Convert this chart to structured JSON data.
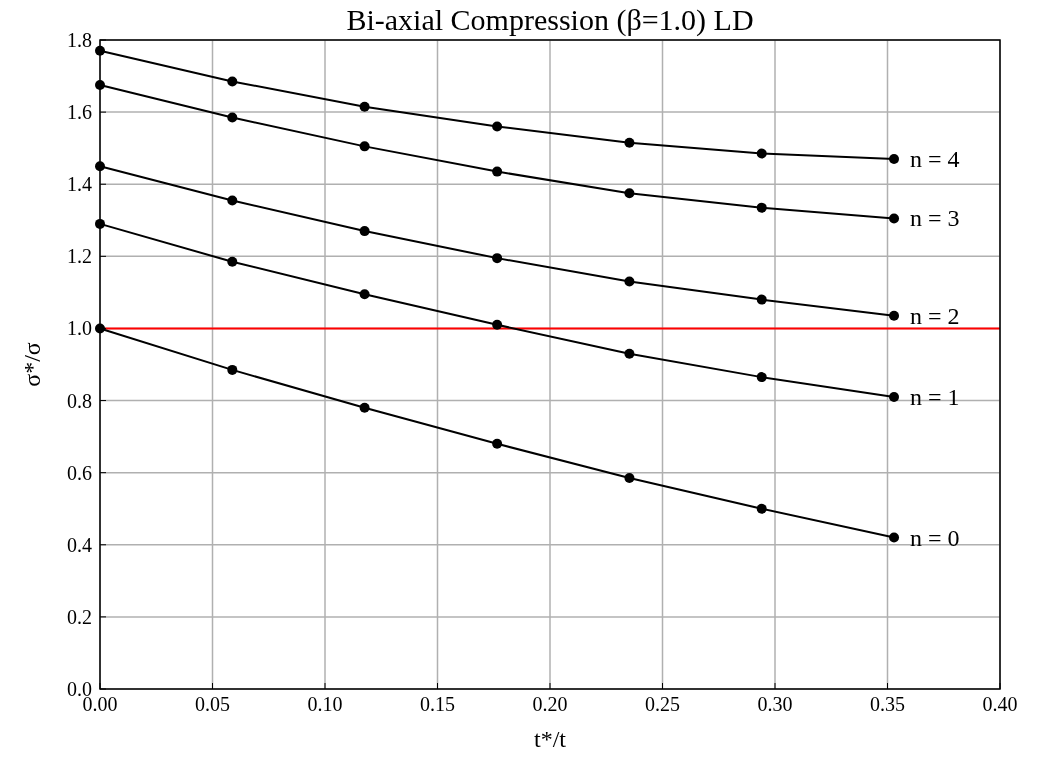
{
  "chart_data": {
    "type": "line",
    "title": "Bi-axial Compression (β=1.0) LD",
    "xlabel": "t*/t",
    "ylabel": "σ*/σ",
    "x": [
      0,
      0.0588,
      0.1176,
      0.1765,
      0.2353,
      0.2941,
      0.3529
    ],
    "series": [
      {
        "name": "n = 4",
        "color": "#000000",
        "values": [
          1.77,
          1.685,
          1.615,
          1.56,
          1.515,
          1.485,
          1.47
        ]
      },
      {
        "name": "n = 3",
        "color": "#000000",
        "values": [
          1.675,
          1.585,
          1.505,
          1.435,
          1.375,
          1.335,
          1.305
        ]
      },
      {
        "name": "n = 2",
        "color": "#000000",
        "values": [
          1.45,
          1.355,
          1.27,
          1.195,
          1.13,
          1.08,
          1.035
        ]
      },
      {
        "name": "n = 1",
        "color": "#000000",
        "values": [
          1.29,
          1.185,
          1.095,
          1.01,
          0.93,
          0.865,
          0.81
        ]
      },
      {
        "name": "n = 0",
        "color": "#000000",
        "values": [
          1.0,
          0.885,
          0.78,
          0.68,
          0.585,
          0.5,
          0.42
        ]
      }
    ],
    "xlim": [
      0,
      0.4
    ],
    "xticks": [
      {
        "value": 0,
        "label": "0.00"
      },
      0.05,
      {
        "value": 0.1,
        "label": "0.10"
      },
      0.15,
      {
        "value": 0.2,
        "label": "0.20"
      },
      0.25,
      {
        "value": 0.3,
        "label": "0.30"
      },
      0.35,
      {
        "value": 0.4,
        "label": "0.40"
      }
    ],
    "ylim": [
      0,
      1.8
    ],
    "yticks": [
      {
        "value": 0,
        "label": "0.0"
      },
      0.2,
      0.4,
      0.6,
      0.8,
      {
        "value": 1,
        "label": "1.0"
      },
      1.2,
      1.4,
      1.6,
      1.8
    ],
    "ref_lines": [
      {
        "axis": "y",
        "value": 1,
        "color": "#ff0000"
      }
    ],
    "grid": true,
    "marker": "circle",
    "line_style": "solid"
  }
}
